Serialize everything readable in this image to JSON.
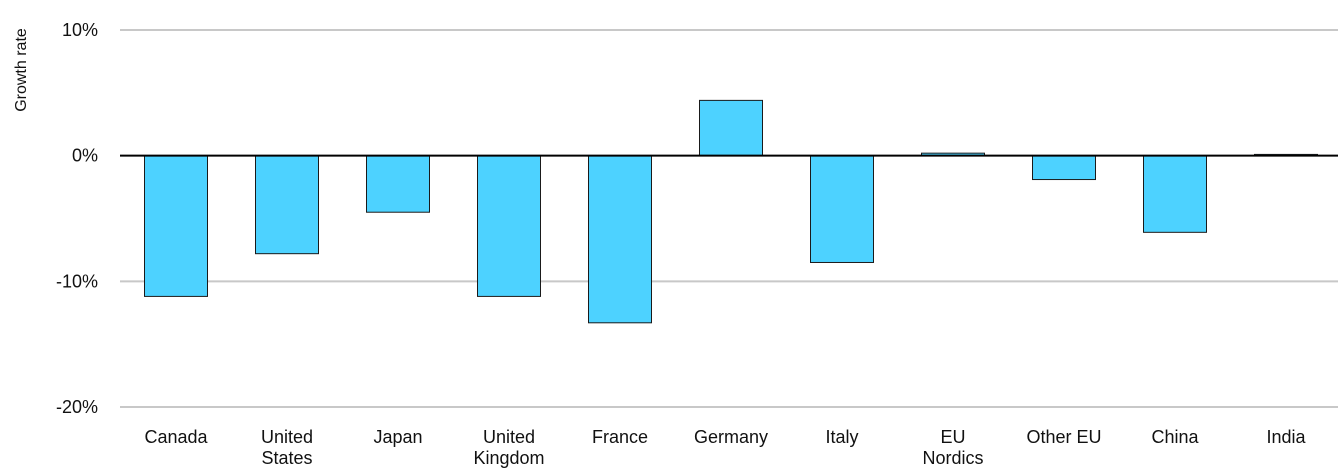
{
  "chart_data": {
    "type": "bar",
    "title": "",
    "xlabel": "",
    "ylabel": "Growth rate",
    "categories": [
      [
        "Canada"
      ],
      [
        "United",
        "States"
      ],
      [
        "Japan"
      ],
      [
        "United",
        "Kingdom"
      ],
      [
        "France"
      ],
      [
        "Germany"
      ],
      [
        "Italy"
      ],
      [
        "EU",
        "Nordics"
      ],
      [
        "Other EU"
      ],
      [
        "China"
      ],
      [
        "India"
      ]
    ],
    "values": [
      -11.2,
      -7.8,
      -4.5,
      -11.2,
      -13.3,
      4.4,
      -8.5,
      0.2,
      -1.9,
      -6.1,
      0.1
    ],
    "ylim": [
      -20,
      10
    ],
    "yticks": [
      10,
      0,
      -10,
      -20
    ],
    "ytick_labels": [
      "10%",
      "0%",
      "-10%",
      "-20%"
    ],
    "grid": true,
    "bar_color": "#4DD2FF",
    "bar_edge_color": "#1a1a1a",
    "grid_color": "#c8c8c8"
  }
}
